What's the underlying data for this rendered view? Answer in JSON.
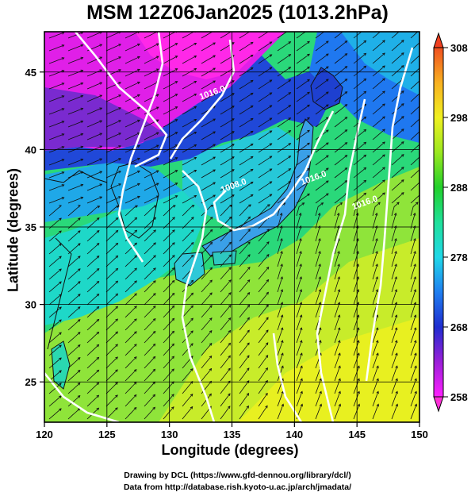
{
  "title": "MSM 12Z06Jan2025 (1013.2hPa)",
  "chart_data": {
    "type": "map",
    "title": "MSM 12Z06Jan2025 (1013.2hPa)",
    "xlabel": "Longitude (degrees)",
    "ylabel": "Latitude  (degrees)",
    "xlim": [
      120,
      150
    ],
    "ylim": [
      22.4,
      47.6
    ],
    "x_ticks": [
      120,
      125,
      130,
      135,
      140,
      145,
      150
    ],
    "y_ticks": [
      25,
      30,
      35,
      40,
      45
    ],
    "grid": true,
    "colorbar": {
      "min": 258,
      "max": 308,
      "ticks": [
        258,
        268,
        278,
        288,
        298,
        308
      ],
      "stops": [
        "#ff1fff",
        "#9b1fd8",
        "#1f2dd0",
        "#1f7ff0",
        "#1fd8e8",
        "#1fe09a",
        "#22d02a",
        "#9be81f",
        "#f0f020",
        "#f8b020",
        "#f05020"
      ]
    },
    "contour_labels": [
      {
        "text": "1016.0",
        "lon": 133.5,
        "lat": 43.5
      },
      {
        "text": "1008.0",
        "lon": 135.2,
        "lat": 37.5
      },
      {
        "text": "1016.0",
        "lon": 141.6,
        "lat": 38.0
      },
      {
        "text": "1016.0",
        "lon": 145.7,
        "lat": 36.4
      }
    ]
  },
  "footer": {
    "credit_line1": "Drawing by DCL (https://www.gfd-dennou.org/library/dcl/)",
    "credit_line2": "Data from http://database.rish.kyoto-u.ac.jp/arch/jmadata/"
  }
}
